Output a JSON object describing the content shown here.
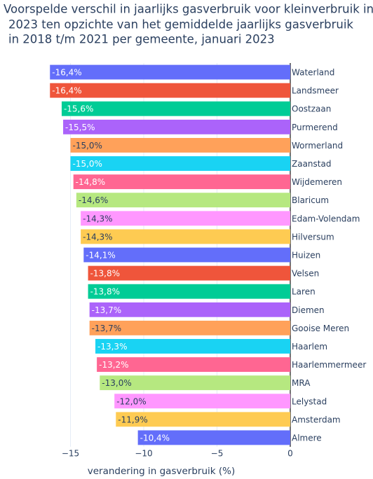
{
  "chart_data": {
    "type": "hbar",
    "title": [
      "Voorspelde verschil in jaarlijks gasverbruik voor kleinverbruik in",
      "2023 ten opzichte van het gemiddelde jaarlijks gasverbruik",
      "in 2018 t/m 2021 per gemeente, januari 2023"
    ],
    "x_label": "verandering in gasverbruik (%)",
    "categories": [
      "Waterland",
      "Landsmeer",
      "Oostzaan",
      "Purmerend",
      "Wormerland",
      "Zaanstad",
      "Wijdemeren",
      "Blaricum",
      "Edam-Volendam",
      "Hilversum",
      "Huizen",
      "Velsen",
      "Laren",
      "Diemen",
      "Gooise Meren",
      "Haarlem",
      "Haarlemmermeer",
      "MRA",
      "Lelystad",
      "Amsterdam",
      "Almere"
    ],
    "values": [
      -16.4,
      -16.4,
      -15.6,
      -15.5,
      -15.0,
      -15.0,
      -14.8,
      -14.6,
      -14.3,
      -14.3,
      -14.1,
      -13.8,
      -13.8,
      -13.7,
      -13.7,
      -13.3,
      -13.2,
      -13.0,
      -12.0,
      -11.9,
      -10.4
    ],
    "value_labels": [
      "-16,4%",
      "-16,4%",
      "-15,6%",
      "-15,5%",
      "-15,0%",
      "-15,0%",
      "-14,8%",
      "-14,6%",
      "-14,3%",
      "-14,3%",
      "-14,1%",
      "-13,8%",
      "-13,8%",
      "-13,7%",
      "-13,7%",
      "-13,3%",
      "-13,2%",
      "-13,0%",
      "-12,0%",
      "-11,9%",
      "-10,4%"
    ],
    "colors": [
      "#636efa",
      "#ef553b",
      "#00cc96",
      "#ab63fa",
      "#ffa15a",
      "#19d3f3",
      "#ff6692",
      "#b6e880",
      "#ff97ff",
      "#fecb52",
      "#636efa",
      "#ef553b",
      "#00cc96",
      "#ab63fa",
      "#ffa15a",
      "#19d3f3",
      "#ff6692",
      "#b6e880",
      "#ff97ff",
      "#fecb52",
      "#636efa"
    ],
    "xlim": [
      -17,
      0
    ],
    "xticks": [
      {
        "value": -15,
        "label": "−15"
      },
      {
        "value": -10,
        "label": "−10"
      },
      {
        "value": -5,
        "label": "−5"
      },
      0
    ],
    "grid": true
  }
}
